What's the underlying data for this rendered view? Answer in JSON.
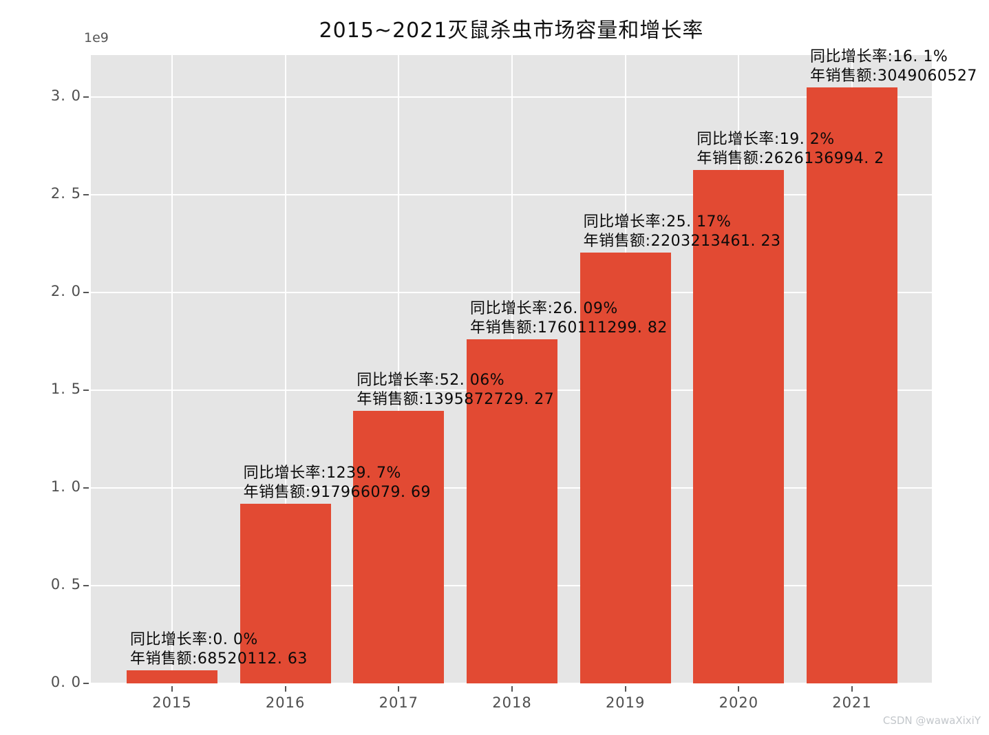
{
  "title": "2015~2021灭鼠杀虫市场容量和增长率",
  "axis_offset_label": "1e9",
  "watermark": "CSDN @wawaXixiY",
  "colors": {
    "bar": "#e24a33",
    "plot_background": "#e5e5e5",
    "gridline": "#ffffff",
    "tick_label": "#4e4e4e",
    "annotation_text": "#0a0a0a",
    "watermark": "#c3c7cb"
  },
  "chart_data": {
    "type": "bar",
    "title": "2015~2021灭鼠杀虫市场容量和增长率",
    "xlabel": "",
    "ylabel": "",
    "y_offset_label": "1e9",
    "ylim": [
      0,
      3200000000
    ],
    "grid": true,
    "legend_position": "none",
    "categories": [
      "2015",
      "2016",
      "2017",
      "2018",
      "2019",
      "2020",
      "2021"
    ],
    "values": [
      68520112.63,
      917966079.69,
      1395872729.27,
      1760111299.82,
      2203213461.23,
      2626136994.2,
      3049060527
    ],
    "growth_rate_percent": [
      0.0,
      1239.7,
      52.06,
      26.09,
      25.17,
      19.2,
      16.1
    ],
    "yticks": [
      {
        "value": 0.0,
        "label": "0. 0"
      },
      {
        "value": 0.5,
        "label": "0. 5"
      },
      {
        "value": 1.0,
        "label": "1. 0"
      },
      {
        "value": 1.5,
        "label": "1. 5"
      },
      {
        "value": 2.0,
        "label": "2. 0"
      },
      {
        "value": 2.5,
        "label": "2. 5"
      },
      {
        "value": 3.0,
        "label": "3. 0"
      }
    ],
    "annotations": [
      {
        "line1": "同比增长率:0. 0%",
        "line2": "年销售额:68520112. 63"
      },
      {
        "line1": "同比增长率:1239. 7%",
        "line2": "年销售额:917966079. 69"
      },
      {
        "line1": "同比增长率:52. 06%",
        "line2": "年销售额:1395872729. 27"
      },
      {
        "line1": "同比增长率:26. 09%",
        "line2": "年销售额:1760111299. 82"
      },
      {
        "line1": "同比增长率:25. 17%",
        "line2": "年销售额:2203213461. 23"
      },
      {
        "line1": "同比增长率:19. 2%",
        "line2": "年销售额:2626136994. 2"
      },
      {
        "line1": "同比增长率:16. 1%",
        "line2": "年销售额:3049060527"
      }
    ]
  }
}
